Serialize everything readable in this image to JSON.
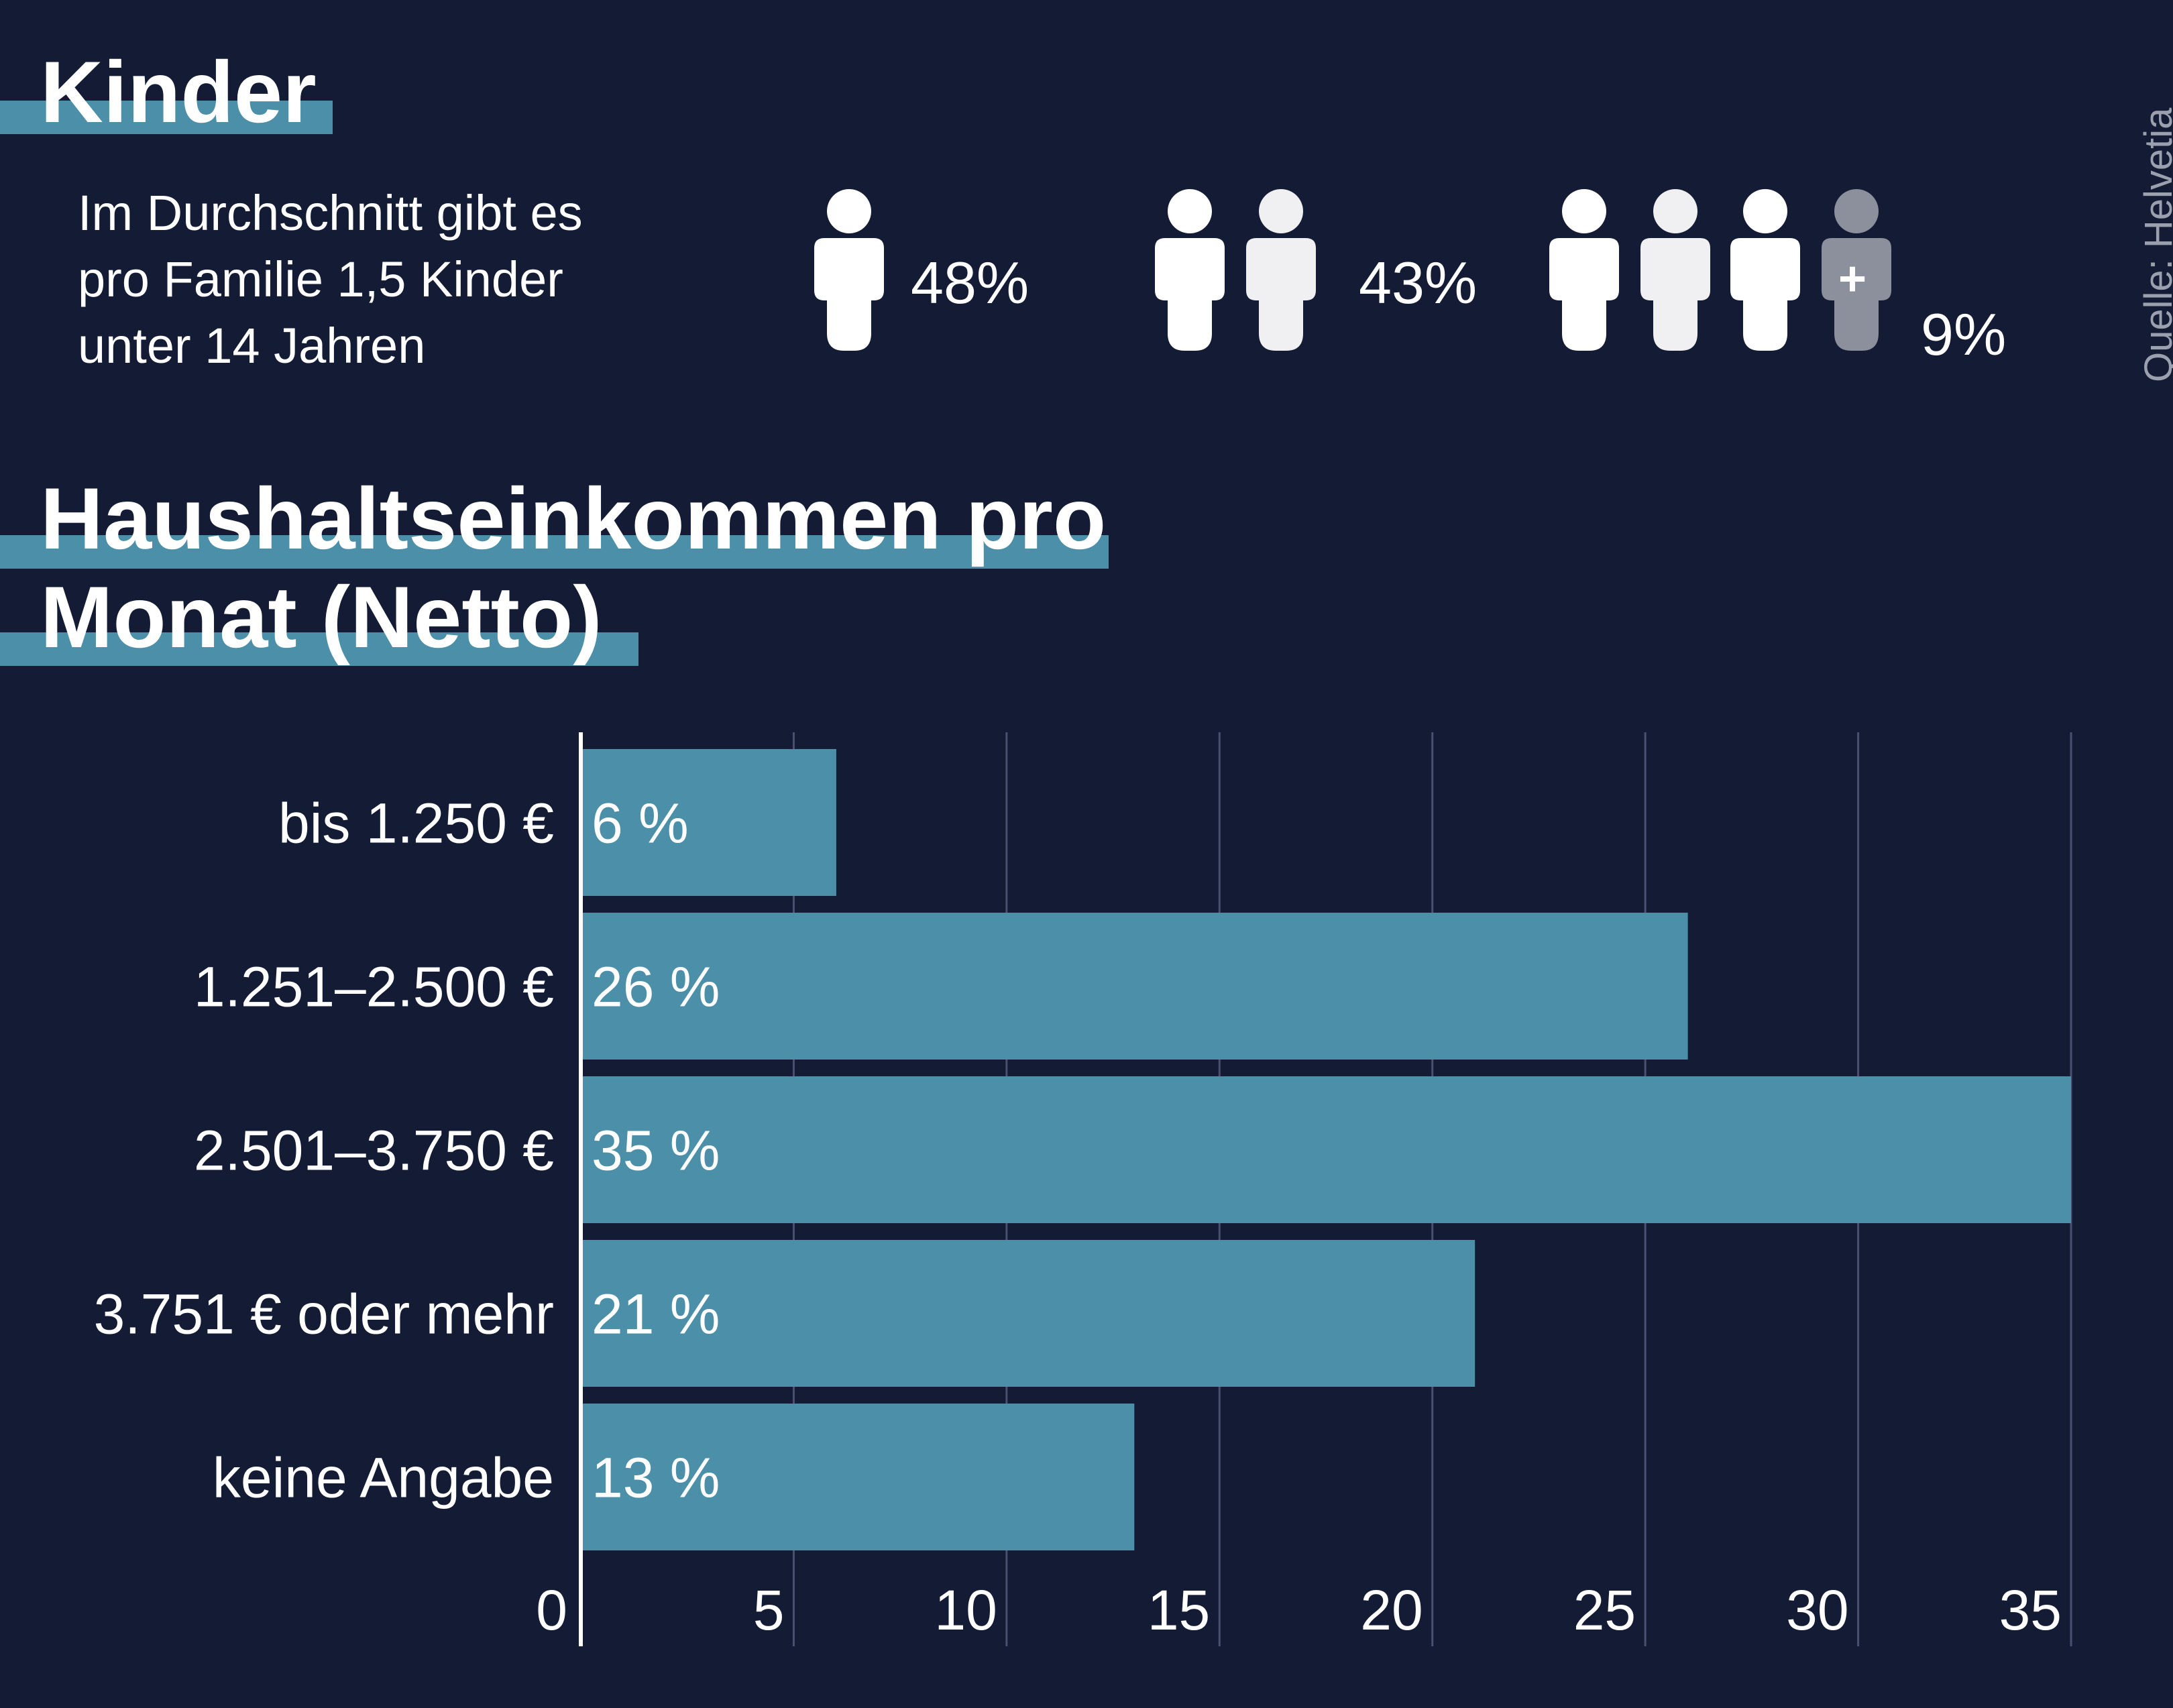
{
  "colors": {
    "background": "#141b35",
    "accent": "#4b8fa8",
    "bar": "#4b8fa8",
    "figure": "#ffffff",
    "figure_alt": "#f0f0f2",
    "figure_extra": "#8c8f9c",
    "grid": "#4a5070",
    "source_text": "#9aa0ad"
  },
  "kinder": {
    "title": "Kinder",
    "description_lines": [
      "Im Durchschnitt gibt es",
      "pro Familie 1,5 Kinder",
      "unter 14 Jahren"
    ],
    "groups": [
      {
        "children": 1,
        "percent_label": "48%",
        "icons": [
          "person-icon"
        ]
      },
      {
        "children": 2,
        "percent_label": "43%",
        "icons": [
          "person-icon",
          "person-icon"
        ]
      },
      {
        "children": "3+",
        "percent_label": "9%",
        "icons": [
          "person-icon",
          "person-icon",
          "person-icon",
          "person-plus-icon"
        ],
        "plus_symbol": "+"
      }
    ]
  },
  "source": "Quelle: Helvetia",
  "income": {
    "title_lines": [
      "Haushaltseinkommen pro",
      "Monat (Netto)"
    ]
  },
  "chart_data": {
    "type": "bar",
    "orientation": "horizontal",
    "title": "Haushaltseinkommen pro Monat (Netto)",
    "categories": [
      "bis 1.250 €",
      "1.251–2.500 €",
      "2.501–3.750 €",
      "3.751 € oder mehr",
      "keine Angabe"
    ],
    "values": [
      6,
      26,
      35,
      21,
      13
    ],
    "value_labels": [
      "6 %",
      "26 %",
      "35 %",
      "21 %",
      "13 %"
    ],
    "x_ticks": [
      0,
      5,
      10,
      15,
      20,
      25,
      30,
      35
    ],
    "xlim": [
      0,
      35
    ],
    "xlabel": "",
    "ylabel": "",
    "grid": true,
    "legend": "none"
  }
}
